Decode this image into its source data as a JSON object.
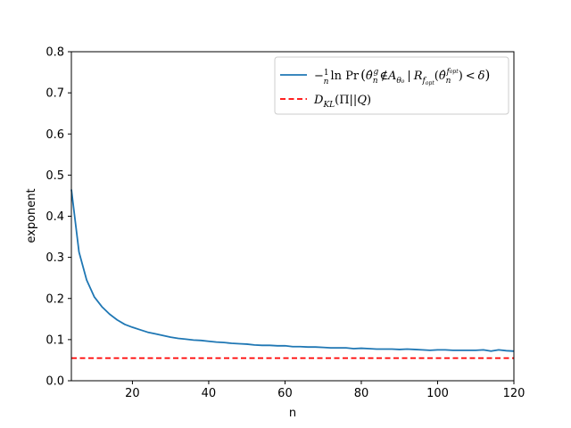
{
  "chart_data": {
    "type": "line",
    "title": "",
    "xlabel": "n",
    "ylabel": "exponent",
    "xlim": [
      4,
      120
    ],
    "ylim": [
      0.0,
      0.8
    ],
    "xticks": [
      20,
      40,
      60,
      80,
      100,
      120
    ],
    "xtick_labels": [
      "20",
      "40",
      "60",
      "80",
      "100",
      "120"
    ],
    "yticks": [
      0.0,
      0.1,
      0.2,
      0.3,
      0.4,
      0.5,
      0.6,
      0.7,
      0.8
    ],
    "ytick_labels": [
      "0.0",
      "0.1",
      "0.2",
      "0.3",
      "0.4",
      "0.5",
      "0.6",
      "0.7",
      "0.8"
    ],
    "grid": false,
    "legend_position": "top-right",
    "series": [
      {
        "name": "−(1/n) ln Pr(θ̂ₙᵍ ∉ A_θ₀ | R_f_opt(θ̂ₙ^f_opt) < δ)",
        "color": "#1f77b4",
        "style": "solid",
        "x": [
          4,
          6,
          8,
          10,
          12,
          14,
          16,
          18,
          20,
          22,
          24,
          26,
          28,
          30,
          32,
          34,
          36,
          38,
          40,
          42,
          44,
          46,
          48,
          50,
          52,
          54,
          56,
          58,
          60,
          62,
          64,
          66,
          68,
          70,
          72,
          74,
          76,
          78,
          80,
          82,
          84,
          86,
          88,
          90,
          92,
          94,
          96,
          98,
          100,
          102,
          104,
          106,
          108,
          110,
          112,
          114,
          116,
          118,
          120
        ],
        "y": [
          0.465,
          0.313,
          0.245,
          0.204,
          0.18,
          0.162,
          0.148,
          0.137,
          0.13,
          0.124,
          0.118,
          0.114,
          0.11,
          0.106,
          0.103,
          0.101,
          0.099,
          0.098,
          0.096,
          0.094,
          0.093,
          0.091,
          0.09,
          0.089,
          0.087,
          0.086,
          0.086,
          0.085,
          0.085,
          0.083,
          0.083,
          0.082,
          0.082,
          0.081,
          0.08,
          0.08,
          0.08,
          0.078,
          0.079,
          0.078,
          0.077,
          0.077,
          0.077,
          0.076,
          0.077,
          0.076,
          0.075,
          0.074,
          0.075,
          0.075,
          0.074,
          0.074,
          0.074,
          0.074,
          0.075,
          0.072,
          0.075,
          0.073,
          0.072
        ]
      },
      {
        "name": "D_KL(Π||Q)",
        "color": "#ff0000",
        "style": "dashed",
        "x": [
          4,
          120
        ],
        "y": [
          0.055,
          0.055
        ]
      }
    ]
  }
}
